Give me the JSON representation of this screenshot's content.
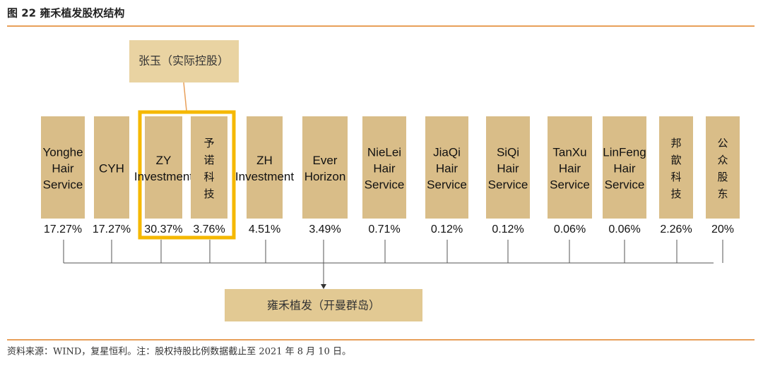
{
  "header": {
    "title": "图 22 雍禾植发股权结构"
  },
  "controller": {
    "label": "张玉（实际控股）"
  },
  "shareholders": [
    {
      "lines": [
        "Yonghe",
        "Hair",
        "Service"
      ],
      "share": "17.27%"
    },
    {
      "lines": [
        "CYH"
      ],
      "share": "17.27%"
    },
    {
      "lines": [
        "ZY",
        "Investment"
      ],
      "share": "30.37%"
    },
    {
      "lines": [
        "予",
        "诺",
        "科",
        "技"
      ],
      "share": "3.76%"
    },
    {
      "lines": [
        "ZH",
        "Investment"
      ],
      "share": "4.51%"
    },
    {
      "lines": [
        "Ever",
        "Horizon"
      ],
      "share": "3.49%"
    },
    {
      "lines": [
        "NieLei",
        "Hair",
        "Service"
      ],
      "share": "0.71%"
    },
    {
      "lines": [
        "JiaQi",
        "Hair",
        "Service"
      ],
      "share": "0.12%"
    },
    {
      "lines": [
        "SiQi",
        "Hair",
        "Service"
      ],
      "share": "0.12%"
    },
    {
      "lines": [
        "TanXu",
        "Hair",
        "Service"
      ],
      "share": "0.06%"
    },
    {
      "lines": [
        "LinFeng",
        "Hair",
        "Service"
      ],
      "share": "0.06%"
    },
    {
      "lines": [
        "邦",
        "歆",
        "科",
        "技"
      ],
      "share": "2.26%"
    },
    {
      "lines": [
        "公",
        "众",
        "股",
        "东"
      ],
      "share": "20%"
    }
  ],
  "company": {
    "label": "雍禾植发（开曼群岛）"
  },
  "footer": {
    "source": "资料来源：WIND，复星恒利。注：股权持股比例数据截止至 2021 年 8 月 10 日。"
  }
}
